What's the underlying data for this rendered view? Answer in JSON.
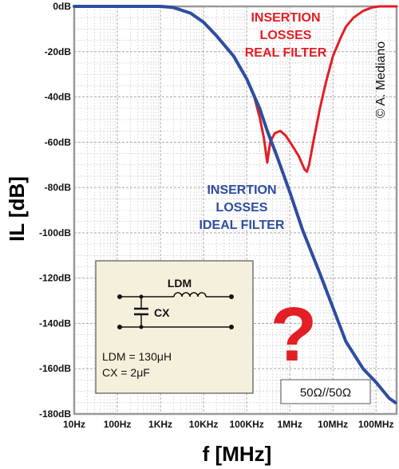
{
  "chart_data": {
    "type": "line",
    "xlabel": "f [MHz]",
    "ylabel": "IL [dB]",
    "x_scale": "log",
    "xlim": [
      10,
      300000000
    ],
    "ylim": [
      -180,
      0
    ],
    "grid": true,
    "x_ticks": [
      {
        "value": 10,
        "label": "10Hz"
      },
      {
        "value": 100,
        "label": "100Hz"
      },
      {
        "value": 1000,
        "label": "1KHz"
      },
      {
        "value": 10000,
        "label": "10KHz"
      },
      {
        "value": 100000,
        "label": "100KHz"
      },
      {
        "value": 1000000,
        "label": "1MHz"
      },
      {
        "value": 10000000,
        "label": "10MHz"
      },
      {
        "value": 100000000,
        "label": "100MHz"
      }
    ],
    "y_ticks": [
      {
        "value": 0,
        "label": "0dB"
      },
      {
        "value": -20,
        "label": "-20dB"
      },
      {
        "value": -40,
        "label": "-40dB"
      },
      {
        "value": -60,
        "label": "-60dB"
      },
      {
        "value": -80,
        "label": "-80dB"
      },
      {
        "value": -100,
        "label": "-100dB"
      },
      {
        "value": -120,
        "label": "-120dB"
      },
      {
        "value": -140,
        "label": "-140dB"
      },
      {
        "value": -160,
        "label": "-160dB"
      },
      {
        "value": -180,
        "label": "-180dB"
      }
    ],
    "series": [
      {
        "name": "real",
        "color": "#e31e24",
        "points": [
          [
            10,
            0
          ],
          [
            100,
            0
          ],
          [
            1000,
            0
          ],
          [
            2000,
            -0.5
          ],
          [
            5000,
            -3
          ],
          [
            10000,
            -7
          ],
          [
            20000,
            -13
          ],
          [
            50000,
            -22
          ],
          [
            100000,
            -32
          ],
          [
            150000,
            -40
          ],
          [
            200000,
            -49
          ],
          [
            250000,
            -58
          ],
          [
            300000,
            -69
          ],
          [
            350000,
            -60
          ],
          [
            450000,
            -56
          ],
          [
            600000,
            -55
          ],
          [
            800000,
            -57
          ],
          [
            1100000,
            -61
          ],
          [
            1600000,
            -66
          ],
          [
            2200000,
            -72
          ],
          [
            2500000,
            -73
          ],
          [
            2800000,
            -70
          ],
          [
            3500000,
            -60
          ],
          [
            5000000,
            -45
          ],
          [
            7000000,
            -33
          ],
          [
            10000000,
            -22
          ],
          [
            15000000,
            -14
          ],
          [
            20000000,
            -9
          ],
          [
            30000000,
            -5
          ],
          [
            50000000,
            -2
          ],
          [
            80000000,
            -0.5
          ],
          [
            120000000,
            0
          ],
          [
            300000000,
            0
          ]
        ]
      },
      {
        "name": "ideal",
        "color": "#2e4da0",
        "points": [
          [
            10,
            0
          ],
          [
            100,
            0
          ],
          [
            1000,
            0
          ],
          [
            2000,
            -0.5
          ],
          [
            5000,
            -3
          ],
          [
            10000,
            -7
          ],
          [
            20000,
            -13
          ],
          [
            50000,
            -22
          ],
          [
            100000,
            -32
          ],
          [
            200000,
            -45
          ],
          [
            300000,
            -55
          ],
          [
            500000,
            -66
          ],
          [
            1000000,
            -82
          ],
          [
            2000000,
            -99
          ],
          [
            5000000,
            -118
          ],
          [
            10000000,
            -133
          ],
          [
            20000000,
            -148
          ],
          [
            50000000,
            -160
          ],
          [
            100000000,
            -166
          ],
          [
            200000000,
            -173
          ],
          [
            280000000,
            -175
          ]
        ]
      }
    ],
    "annotations": {
      "real_label": [
        "INSERTION",
        "LOSSES",
        "REAL FILTER"
      ],
      "ideal_label": [
        "INSERTION",
        "LOSSES",
        "IDEAL FILTER"
      ],
      "copyright": "© A. Mediano",
      "question_mark": "?",
      "impedance": "50Ω//50Ω"
    },
    "inset": {
      "inductor_label": "LDM",
      "capacitor_label": "CX",
      "ldm_value": "LDM = 130μH",
      "cx_value": "CX = 2μF"
    }
  },
  "colors": {
    "grid": "#c8c8c8",
    "axis_frame": "#9a9a9a",
    "inset_fill": "#f5f0dc",
    "inset_stroke": "#555555",
    "question": "#e31e24"
  }
}
